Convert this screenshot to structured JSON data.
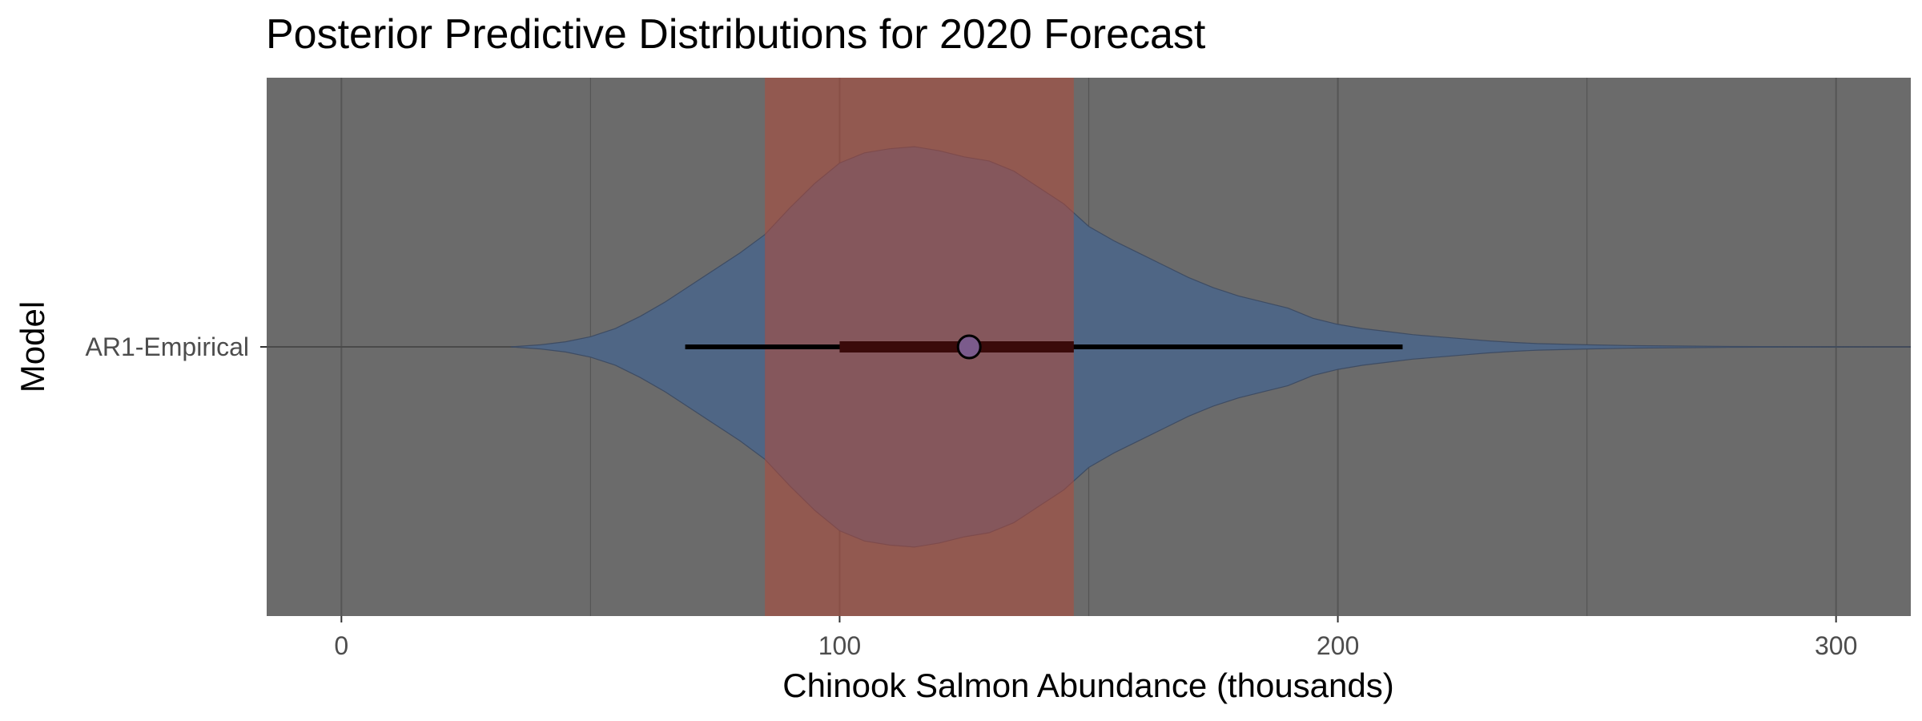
{
  "chart_data": {
    "type": "violin",
    "title": "Posterior Predictive Distributions for 2020 Forecast",
    "xlabel": "Chinook Salmon Abundance (thousands)",
    "ylabel": "Model",
    "xlim": [
      -15,
      315
    ],
    "x_ticks": [
      0,
      100,
      200,
      300
    ],
    "x_ticks_labels": [
      "0",
      "100",
      "200",
      "300"
    ],
    "y_categories": [
      "AR1-Empirical"
    ],
    "grid": true,
    "background_color": "#6b6b6b",
    "grid_color": "#555555",
    "violin_color": "#4f6685",
    "shaded_band_color": "#8e5858",
    "shaded_band": {
      "x_min": 85,
      "x_max": 147
    },
    "density": {
      "x": [
        34,
        40,
        45,
        50,
        55,
        60,
        65,
        70,
        75,
        80,
        85,
        90,
        95,
        100,
        105,
        110,
        115,
        120,
        125,
        130,
        135,
        140,
        145,
        150,
        155,
        160,
        165,
        170,
        175,
        180,
        185,
        190,
        195,
        200,
        205,
        210,
        215,
        220,
        225,
        230,
        235,
        240,
        250,
        260,
        270,
        280,
        290,
        300,
        315
      ],
      "relative_width": [
        0.0,
        0.01,
        0.025,
        0.05,
        0.09,
        0.15,
        0.22,
        0.3,
        0.38,
        0.46,
        0.55,
        0.68,
        0.8,
        0.9,
        0.95,
        0.97,
        0.98,
        0.96,
        0.93,
        0.91,
        0.86,
        0.78,
        0.7,
        0.59,
        0.52,
        0.46,
        0.4,
        0.34,
        0.29,
        0.25,
        0.22,
        0.19,
        0.14,
        0.11,
        0.09,
        0.075,
        0.06,
        0.05,
        0.04,
        0.03,
        0.022,
        0.016,
        0.01,
        0.006,
        0.004,
        0.002,
        0.001,
        0.0005,
        0.0
      ]
    },
    "median": 126,
    "interval_50": [
      100,
      147
    ],
    "interval_95": [
      69,
      213
    ]
  }
}
